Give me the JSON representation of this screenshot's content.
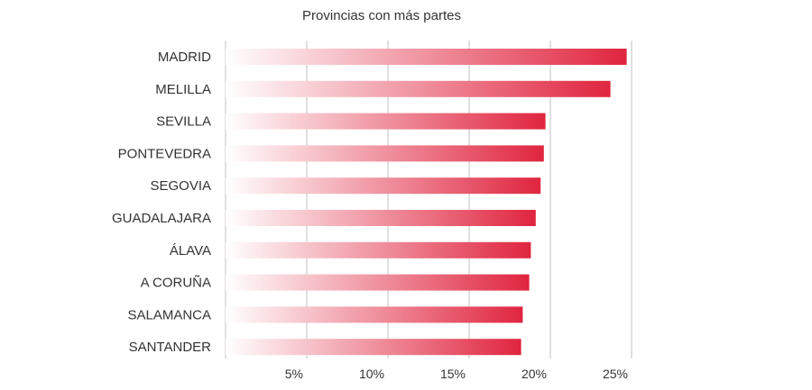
{
  "chart_data": {
    "type": "bar",
    "orientation": "horizontal",
    "title": "Provincias con más partes",
    "categories": [
      "MADRID",
      "MELILLA",
      "SEVILLA",
      "PONTEVEDRA",
      "SEGOVIA",
      "GUADALAJARA",
      "ÁLAVA",
      "A CORUÑA",
      "SALAMANCA",
      "SANTANDER"
    ],
    "values": [
      24.7,
      23.7,
      19.7,
      19.6,
      19.4,
      19.1,
      18.8,
      18.7,
      18.3,
      18.2
    ],
    "xlim": [
      0,
      25
    ],
    "xticks": [
      "5%",
      "10%",
      "15%",
      "20%",
      "25%"
    ],
    "xtick_values": [
      5,
      10,
      15,
      20,
      25
    ],
    "grid": "vertical",
    "bar_color_start": "#ffffff",
    "bar_color_end": "#e0253f"
  }
}
